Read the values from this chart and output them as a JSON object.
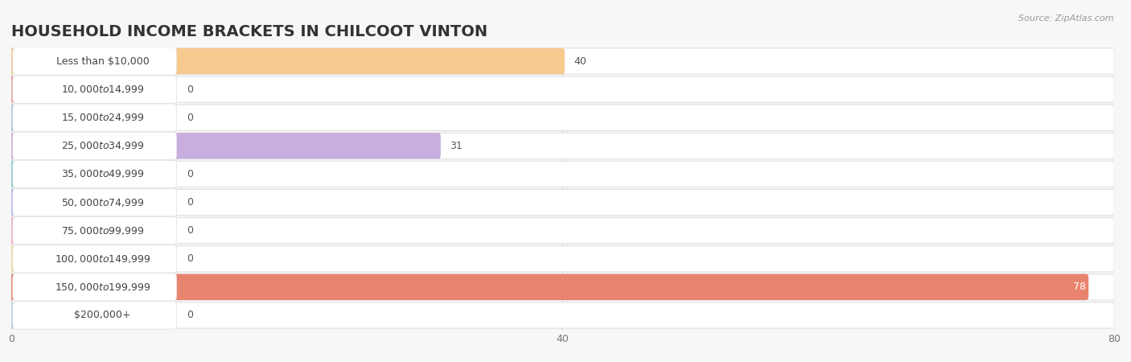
{
  "title": "HOUSEHOLD INCOME BRACKETS IN CHILCOOT VINTON",
  "source": "Source: ZipAtlas.com",
  "categories": [
    "Less than $10,000",
    "$10,000 to $14,999",
    "$15,000 to $24,999",
    "$25,000 to $34,999",
    "$35,000 to $49,999",
    "$50,000 to $74,999",
    "$75,000 to $99,999",
    "$100,000 to $149,999",
    "$150,000 to $199,999",
    "$200,000+"
  ],
  "values": [
    40,
    0,
    0,
    31,
    0,
    0,
    0,
    0,
    78,
    0
  ],
  "bar_colors": [
    "#f6c98e",
    "#f4a0a0",
    "#aac8e8",
    "#c8aede",
    "#82d0ca",
    "#b4baec",
    "#f4aac0",
    "#f6d898",
    "#e8846e",
    "#b8d4f4"
  ],
  "xlim": [
    0,
    80
  ],
  "xticks": [
    0,
    40,
    80
  ],
  "background_color": "#f7f7f7",
  "row_bg": "#ffffff",
  "row_border": "#e0e0e0",
  "title_fontsize": 14,
  "label_fontsize": 9,
  "value_fontsize": 9
}
